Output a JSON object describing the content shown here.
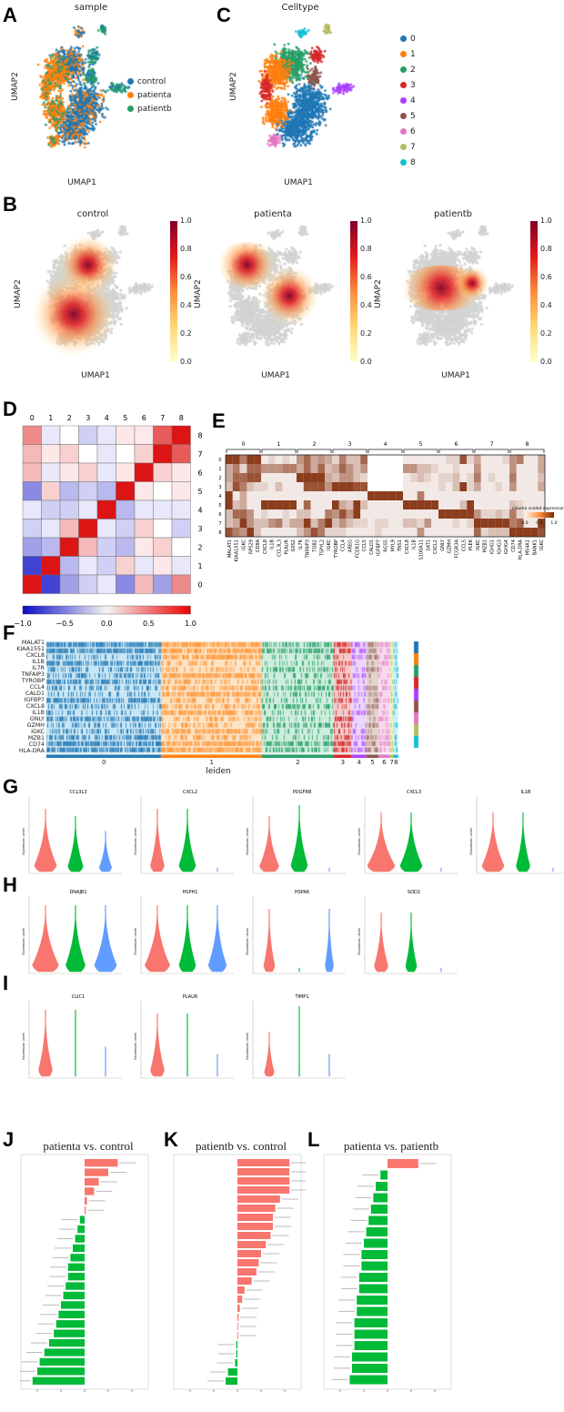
{
  "panelA": {
    "letter": "A",
    "title": "sample",
    "xlabel": "UMAP1",
    "ylabel": "UMAP2",
    "legend": [
      {
        "label": "control",
        "color": "#1f77b4"
      },
      {
        "label": "patienta",
        "color": "#ff7f0e"
      },
      {
        "label": "patientb",
        "color": "#279e68"
      }
    ]
  },
  "panelC": {
    "letter": "C",
    "title": "Celltype",
    "xlabel": "UMAP1",
    "ylabel": "UMAP2",
    "legend": [
      {
        "label": "0",
        "color": "#1f77b4"
      },
      {
        "label": "1",
        "color": "#ff7f0e"
      },
      {
        "label": "2",
        "color": "#279e68"
      },
      {
        "label": "3",
        "color": "#d62728"
      },
      {
        "label": "4",
        "color": "#aa40fc"
      },
      {
        "label": "5",
        "color": "#8c564b"
      },
      {
        "label": "6",
        "color": "#e377c2"
      },
      {
        "label": "7",
        "color": "#b5bd61"
      },
      {
        "label": "8",
        "color": "#17becf"
      }
    ]
  },
  "panelB": {
    "letter": "B",
    "xlabel": "UMAP1",
    "ylabel": "UMAP2",
    "panels": [
      {
        "title": "control"
      },
      {
        "title": "patienta"
      },
      {
        "title": "patientb"
      }
    ],
    "colorbar_ticks": [
      "1.0",
      "0.8",
      "0.6",
      "0.4",
      "0.2",
      "0.0"
    ]
  },
  "chart_data": [
    {
      "letter": "D",
      "type": "heatmap",
      "cols": [
        "0",
        "1",
        "2",
        "3",
        "4",
        "5",
        "6",
        "7",
        "8"
      ],
      "rows": [
        "8",
        "7",
        "6",
        "5",
        "4",
        "3",
        "2",
        "1",
        "0"
      ],
      "vmin": -1,
      "vmax": 1,
      "colorbar_ticks": [
        "−1.0",
        "−0.5",
        "0.0",
        "0.5",
        "1.0"
      ],
      "values": [
        [
          0.5,
          -0.1,
          0.0,
          -0.2,
          -0.1,
          0.1,
          0.1,
          0.7,
          1.0
        ],
        [
          0.3,
          0.1,
          0.2,
          0.0,
          -0.1,
          0.0,
          0.2,
          1.0,
          0.7
        ],
        [
          0.3,
          -0.1,
          0.1,
          0.2,
          -0.1,
          0.1,
          1.0,
          0.2,
          0.1
        ],
        [
          -0.5,
          0.2,
          -0.3,
          -0.2,
          -0.3,
          1.0,
          0.1,
          0.0,
          0.1
        ],
        [
          -0.1,
          -0.2,
          -0.2,
          -0.1,
          1.0,
          -0.3,
          -0.1,
          -0.1,
          -0.1
        ],
        [
          -0.2,
          -0.1,
          0.3,
          1.0,
          -0.1,
          -0.2,
          0.2,
          0.0,
          -0.2
        ],
        [
          -0.4,
          -0.3,
          1.0,
          0.3,
          -0.2,
          -0.3,
          0.1,
          0.2,
          0.0
        ],
        [
          -0.8,
          1.0,
          -0.3,
          -0.1,
          -0.2,
          0.2,
          -0.1,
          0.1,
          -0.1
        ],
        [
          1.0,
          -0.8,
          -0.4,
          -0.2,
          -0.1,
          -0.5,
          0.3,
          -0.4,
          0.5
        ]
      ]
    },
    {
      "letter": "E",
      "type": "heatmap",
      "rows": [
        "0",
        "1",
        "2",
        "3",
        "4",
        "5",
        "6",
        "7",
        "8"
      ],
      "groups": [
        {
          "label": "0",
          "genes": [
            "MALAT1",
            "KIAA1551",
            "IGKC",
            "RPS29",
            "CD8A"
          ]
        },
        {
          "label": "1",
          "genes": [
            "CXCL8",
            "IL1B",
            "CCL3L3",
            "PLAUR",
            "G0S2"
          ]
        },
        {
          "label": "2",
          "genes": [
            "IL7R",
            "TNFAIP3",
            "TOB2",
            "TSPYL2",
            "IGKC"
          ]
        },
        {
          "label": "3",
          "genes": [
            "TYROBP",
            "CCL4",
            "AREG",
            "FCER1G",
            "CCL5"
          ]
        },
        {
          "label": "4",
          "genes": [
            "CALD1",
            "IGFBP7",
            "RGS5",
            "MYL9",
            "TNS1"
          ]
        },
        {
          "label": "5",
          "genes": [
            "CXCL8",
            "IL1B",
            "S100A11",
            "SAT1",
            "CXCL2"
          ]
        },
        {
          "label": "6",
          "genes": [
            "GNLY",
            "GZMH",
            "FCGR3A",
            "CCL5",
            "PLEK"
          ]
        },
        {
          "label": "7",
          "genes": [
            "IGKC",
            "MZB1",
            "IGHG1",
            "IGHG3",
            "IGHG4"
          ]
        },
        {
          "label": "8",
          "genes": [
            "CD74",
            "HLA-DRA",
            "MS4A1",
            "BANK1",
            "IGKC"
          ]
        }
      ],
      "colorbar_label": "column scaled expression",
      "colorbar_ticks": [
        "0.0",
        "0.5",
        "1.0"
      ],
      "values": [
        [
          0.9,
          0.9,
          0.6,
          0.9,
          0.9,
          0.1,
          0.2,
          0.1,
          0.2,
          0.1,
          0.5,
          0.7,
          0.4,
          0.5,
          0.4,
          0.2,
          0.6,
          0.3,
          0.3,
          0.7,
          0,
          0,
          0,
          0,
          0,
          0.1,
          0.1,
          0.1,
          0.1,
          0.1,
          0.1,
          0.2,
          0.2,
          0.8,
          0.2,
          0.4,
          0.1,
          0.1,
          0.1,
          0.2,
          0.5,
          0.6,
          0.1,
          0.1,
          0.4
        ],
        [
          0.4,
          0.6,
          0.2,
          0.7,
          0.7,
          0.5,
          0.5,
          0.5,
          0.6,
          0.6,
          0.4,
          0.7,
          0.4,
          0.7,
          0.3,
          0.4,
          0.7,
          0.5,
          0.3,
          0.5,
          0,
          0,
          0,
          0,
          0,
          0.5,
          0.5,
          0.3,
          0.3,
          0.2,
          0.1,
          0.1,
          0.2,
          0.1,
          0.1,
          0.5,
          0.1,
          0.1,
          0.1,
          0.1,
          0.5,
          0.1,
          0.1,
          0.1,
          0.4
        ],
        [
          0.4,
          0.7,
          0.7,
          0.8,
          0.8,
          0.1,
          0.1,
          0.1,
          0.1,
          0.1,
          0.9,
          0.9,
          0.9,
          0.9,
          0.4,
          0.3,
          0.5,
          0.5,
          0.3,
          0.2,
          0,
          0,
          0,
          0,
          0,
          0.1,
          0.2,
          0.3,
          0.2,
          0.1,
          0.2,
          0.2,
          0.3,
          0.1,
          0.2,
          0.6,
          0.1,
          0.2,
          0.1,
          0.1,
          0.6,
          0.1,
          0.1,
          0.1,
          0.3
        ],
        [
          0.3,
          0.8,
          0.6,
          0.3,
          0.2,
          0.2,
          0.1,
          0.3,
          0.1,
          0.1,
          0.1,
          0.8,
          0.8,
          0.8,
          0.5,
          0.9,
          0.9,
          0.9,
          0.8,
          0.8,
          0,
          0,
          0,
          0,
          0,
          0.1,
          0.1,
          0.1,
          0.1,
          0.1,
          0.2,
          0.1,
          0.3,
          0.9,
          0.2,
          0.4,
          0.1,
          0.1,
          0.2,
          0.1,
          0.5,
          0.1,
          0.1,
          0.1,
          0.4
        ],
        [
          0.9,
          0.1,
          0.4,
          0.1,
          0.1,
          0.1,
          0.1,
          0.1,
          0.1,
          0.1,
          0.1,
          0.1,
          0.1,
          0.1,
          0.1,
          0.1,
          0.1,
          0.1,
          0.1,
          0.1,
          0.9,
          0.9,
          0.9,
          0.9,
          0.9,
          0.1,
          0.1,
          0.6,
          0.1,
          0.1,
          0.1,
          0.1,
          0.1,
          0.1,
          0.1,
          0.1,
          0.1,
          0.1,
          0.1,
          0.1,
          0.1,
          0.1,
          0.1,
          0.1,
          0.1
        ],
        [
          0.9,
          0.3,
          0.4,
          0.1,
          0.1,
          0.9,
          0.9,
          0.9,
          0.9,
          0.9,
          0.1,
          0.7,
          0.1,
          0.1,
          0.1,
          0.9,
          0.4,
          0.3,
          0.9,
          0.3,
          0.1,
          0.1,
          0.1,
          0.1,
          0.1,
          0.9,
          0.9,
          0.9,
          0.9,
          0.9,
          0.1,
          0.1,
          0.1,
          0.3,
          0.9,
          0.1,
          0.1,
          0.1,
          0.1,
          0.1,
          0.3,
          0.2,
          0.1,
          0.1,
          0.1
        ],
        [
          0.3,
          0.7,
          0.7,
          0.5,
          0.1,
          0.2,
          0.1,
          0.1,
          0.2,
          0.1,
          0.3,
          0.3,
          0.1,
          0.1,
          0.6,
          0.5,
          0.8,
          0.5,
          0.9,
          0.1,
          0.1,
          0.1,
          0.1,
          0.1,
          0.1,
          0.1,
          0.1,
          0.1,
          0.1,
          0.1,
          0.9,
          0.9,
          0.9,
          0.9,
          0.9,
          0.5,
          0.2,
          0.2,
          0.3,
          0.2,
          0.6,
          0.2,
          0.1,
          0.1,
          0.1
        ],
        [
          0.3,
          0.4,
          0.9,
          0.5,
          0.3,
          0.3,
          0.5,
          0.6,
          0.2,
          0.4,
          0.4,
          0.9,
          0.3,
          0.6,
          0.9,
          0.3,
          0.5,
          0.3,
          0.2,
          0.2,
          0.1,
          0.2,
          0.2,
          0.1,
          0.1,
          0.3,
          0.3,
          0.2,
          0.5,
          0.1,
          0.1,
          0.1,
          0.2,
          0.1,
          0.2,
          0.9,
          0.9,
          0.9,
          0.9,
          0.9,
          0.6,
          0.7,
          0.1,
          0.1,
          0.9
        ],
        [
          0.8,
          0.6,
          0.5,
          0.9,
          0.3,
          0.1,
          0.1,
          0.1,
          0.1,
          0.1,
          0.3,
          0.5,
          0.8,
          0.6,
          0.2,
          0.2,
          0.2,
          0.1,
          0.1,
          0.1,
          0.1,
          0.2,
          0.1,
          0.1,
          0.1,
          0.1,
          0.1,
          0.5,
          0.1,
          0.1,
          0.1,
          0.1,
          0.1,
          0.1,
          0.1,
          0.7,
          0.2,
          0.3,
          0.3,
          0.3,
          0.9,
          0.9,
          0.9,
          0.9,
          0.8
        ]
      ]
    },
    {
      "letter": "F",
      "type": "heatmap",
      "xlabel": "leiden",
      "genes": [
        "MALAT1",
        "KIAA1551",
        "CXCL8",
        "IL1B",
        "IL7R",
        "TNFAIP3",
        "TYROBP",
        "CCL4",
        "CALD1",
        "IGFBP7",
        "CXCL8",
        "IL1B",
        "GNLY",
        "GZMH",
        "IGKC",
        "MZB1",
        "CD74",
        "HLA-DRA"
      ],
      "clusters": [
        "0",
        "1",
        "2",
        "3",
        "4",
        "5",
        "6",
        "7",
        "8"
      ],
      "cluster_fraction": [
        0.32,
        0.28,
        0.2,
        0.05,
        0.04,
        0.035,
        0.03,
        0.012,
        0.012
      ]
    },
    {
      "type": "violin",
      "ylabel": "Expression Level",
      "group_colors": [
        "#f8766d",
        "#00ba38",
        "#619cff"
      ],
      "panels": [
        {
          "letter": "G",
          "genes": [
            {
              "name": "CCL3L3",
              "groups": [
                {
                  "height": 0.85,
                  "width": 0.8
                },
                {
                  "height": 0.75,
                  "width": 0.55
                },
                {
                  "height": 0.55,
                  "width": 0.45
                }
              ]
            },
            {
              "name": "CXCL2",
              "groups": [
                {
                  "height": 0.85,
                  "width": 0.5
                },
                {
                  "height": 0.85,
                  "width": 0.6
                },
                {
                  "height": 0.05,
                  "width": 0.02
                }
              ]
            },
            {
              "name": "PDGFRB",
              "groups": [
                {
                  "height": 0.75,
                  "width": 0.7
                },
                {
                  "height": 0.9,
                  "width": 0.6
                },
                {
                  "height": 0.05,
                  "width": 0.02
                }
              ]
            },
            {
              "name": "CXCL3",
              "groups": [
                {
                  "height": 0.8,
                  "width": 1.0
                },
                {
                  "height": 0.8,
                  "width": 0.8
                },
                {
                  "height": 0.05,
                  "width": 0.02
                }
              ]
            },
            {
              "name": "IL1B",
              "groups": [
                {
                  "height": 0.8,
                  "width": 0.8
                },
                {
                  "height": 0.8,
                  "width": 0.5
                },
                {
                  "height": 0.05,
                  "width": 0.02
                }
              ]
            }
          ]
        },
        {
          "letter": "H",
          "genes": [
            {
              "name": "DNAJB1",
              "groups": [
                {
                  "height": 0.9,
                  "width": 0.95
                },
                {
                  "height": 0.9,
                  "width": 0.7
                },
                {
                  "height": 0.9,
                  "width": 0.8
                }
              ]
            },
            {
              "name": "HSPH1",
              "groups": [
                {
                  "height": 0.9,
                  "width": 0.9
                },
                {
                  "height": 0.9,
                  "width": 0.6
                },
                {
                  "height": 0.9,
                  "width": 0.65
                }
              ]
            },
            {
              "name": "HSPA6",
              "groups": [
                {
                  "height": 0.85,
                  "width": 0.4
                },
                {
                  "height": 0.05,
                  "width": 0.02
                },
                {
                  "height": 0.85,
                  "width": 0.3
                }
              ]
            },
            {
              "name": "SOD2",
              "groups": [
                {
                  "height": 0.8,
                  "width": 0.5
                },
                {
                  "height": 0.8,
                  "width": 0.4
                },
                {
                  "height": 0.05,
                  "width": 0.02
                }
              ]
            }
          ]
        },
        {
          "letter": "I",
          "genes": [
            {
              "name": "CLIC1",
              "groups": [
                {
                  "height": 0.9,
                  "width": 0.5
                },
                {
                  "height": 0.9,
                  "width": 0.03
                },
                {
                  "height": 0.4,
                  "width": 0.03
                }
              ]
            },
            {
              "name": "PLAUR",
              "groups": [
                {
                  "height": 0.85,
                  "width": 0.5
                },
                {
                  "height": 0.85,
                  "width": 0.03
                },
                {
                  "height": 0.3,
                  "width": 0.03
                }
              ]
            },
            {
              "name": "TIMP1",
              "groups": [
                {
                  "height": 0.6,
                  "width": 0.35
                },
                {
                  "height": 0.95,
                  "width": 0.03
                },
                {
                  "height": 0.3,
                  "width": 0.03
                }
              ]
            }
          ]
        }
      ]
    },
    {
      "letter": "J",
      "type": "bar",
      "orientation": "horizontal",
      "title": "patienta vs. control",
      "xlim": [
        -2.5,
        2.5
      ],
      "positive_color": "#f8766d",
      "negative_color": "#00ba38",
      "values": [
        1.4,
        1.0,
        0.6,
        0.4,
        0.1,
        0.05,
        -0.2,
        -0.3,
        -0.4,
        -0.5,
        -0.6,
        -0.7,
        -0.7,
        -0.8,
        -0.9,
        -1.0,
        -1.1,
        -1.2,
        -1.3,
        -1.5,
        -1.7,
        -1.9,
        -2.0,
        -2.2
      ]
    },
    {
      "letter": "K",
      "type": "bar",
      "orientation": "horizontal",
      "title": "patientb vs. control",
      "xlim": [
        -2.5,
        2.5
      ],
      "positive_color": "#f8766d",
      "negative_color": "#00ba38",
      "values": [
        2.2,
        2.2,
        2.2,
        2.2,
        1.8,
        1.6,
        1.5,
        1.5,
        1.4,
        1.2,
        1.0,
        0.9,
        0.8,
        0.6,
        0.3,
        0.2,
        0.1,
        0.05,
        0.03,
        0.02,
        -0.05,
        -0.05,
        -0.1,
        -0.4,
        -0.5
      ]
    },
    {
      "letter": "L",
      "type": "bar",
      "orientation": "horizontal",
      "title": "patienta vs. patientb",
      "xlim": [
        -2.5,
        2.5
      ],
      "positive_color": "#f8766d",
      "negative_color": "#00ba38",
      "values": [
        1.3,
        -0.3,
        -0.5,
        -0.6,
        -0.7,
        -0.8,
        -0.9,
        -1.0,
        -1.1,
        -1.1,
        -1.2,
        -1.2,
        -1.3,
        -1.3,
        -1.4,
        -1.4,
        -1.4,
        -1.5,
        -1.5,
        -1.6
      ]
    }
  ]
}
